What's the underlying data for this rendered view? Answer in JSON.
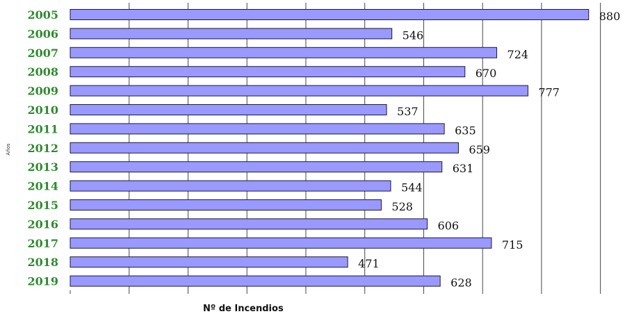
{
  "chart_data": {
    "type": "bar",
    "orientation": "horizontal",
    "categories": [
      "2005",
      "2006",
      "2007",
      "2008",
      "2009",
      "2010",
      "2011",
      "2012",
      "2013",
      "2014",
      "2015",
      "2016",
      "2017",
      "2018",
      "2019"
    ],
    "values": [
      880,
      546,
      724,
      670,
      777,
      537,
      635,
      659,
      631,
      544,
      528,
      606,
      715,
      471,
      628
    ],
    "xlabel": "Nº de Incendios",
    "ylabel": "Años",
    "xlim": [
      0,
      900
    ],
    "x_gridlines": [
      100,
      200,
      300,
      400,
      500,
      600,
      700,
      800,
      900
    ],
    "grid": "vertical",
    "legend": "none",
    "data_labels": true
  },
  "colors": {
    "bar_fill": "#9999ff",
    "bar_stroke": "#1a1a3a",
    "category_label": "#2e8b2e",
    "gridline": "#444444",
    "value_label": "#111111"
  }
}
